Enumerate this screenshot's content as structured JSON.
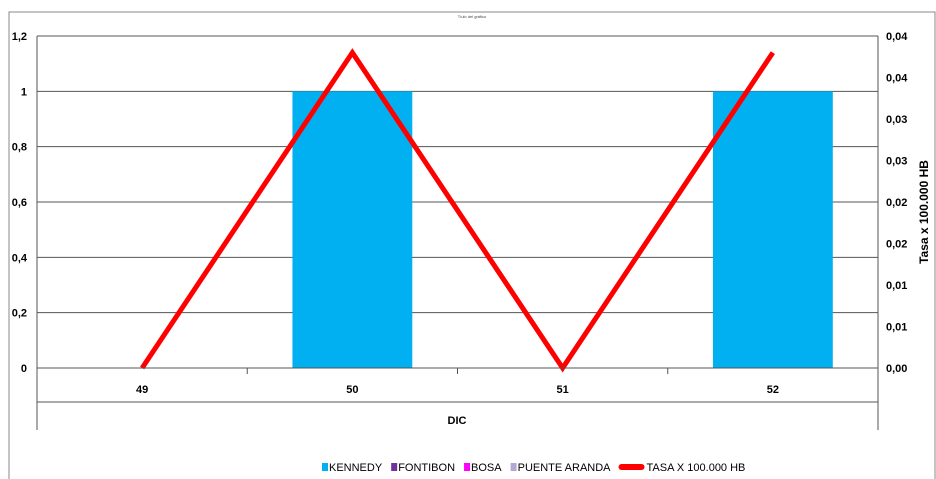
{
  "chart_data": {
    "type": "bar",
    "title": "Tíulo del gráfico",
    "categories": [
      "49",
      "50",
      "51",
      "52"
    ],
    "group_label": "DIC",
    "series": [
      {
        "name": "KENNEDY",
        "type": "bar",
        "axis": "left",
        "color": "#00B0F0",
        "values": [
          0,
          1,
          0,
          1
        ]
      },
      {
        "name": "FONTIBON",
        "type": "bar",
        "axis": "left",
        "color": "#7030A0",
        "values": [
          0,
          0,
          0,
          0
        ]
      },
      {
        "name": "BOSA",
        "type": "bar",
        "axis": "left",
        "color": "#FF00FF",
        "values": [
          0,
          0,
          0,
          0
        ]
      },
      {
        "name": "PUENTE ARANDA",
        "type": "bar",
        "axis": "left",
        "color": "#B4A7D6",
        "values": [
          0,
          0,
          0,
          0
        ]
      },
      {
        "name": "TASA X 100.000 HB",
        "type": "line",
        "axis": "right",
        "color": "#FF0000",
        "values": [
          0,
          0.038,
          0,
          0.038
        ]
      }
    ],
    "y_left": {
      "ylim": [
        0,
        1.2
      ],
      "ticks": [
        0,
        0.2,
        0.4,
        0.6,
        0.8,
        1,
        1.2
      ],
      "tick_labels": [
        "0",
        "0,2",
        "0,4",
        "0,6",
        "0,8",
        "1",
        "1,2"
      ]
    },
    "y_right": {
      "ylabel": "Tasa x 100.000 HB",
      "ylim": [
        0,
        0.04
      ],
      "ticks": [
        0,
        0.005,
        0.01,
        0.015,
        0.02,
        0.025,
        0.03,
        0.035,
        0.04
      ],
      "tick_labels": [
        "0,00",
        "0,01",
        "0,01",
        "0,02",
        "0,02",
        "0,03",
        "0,03",
        "0,04",
        "0,04"
      ]
    },
    "grid": true,
    "legend_position": "bottom"
  }
}
